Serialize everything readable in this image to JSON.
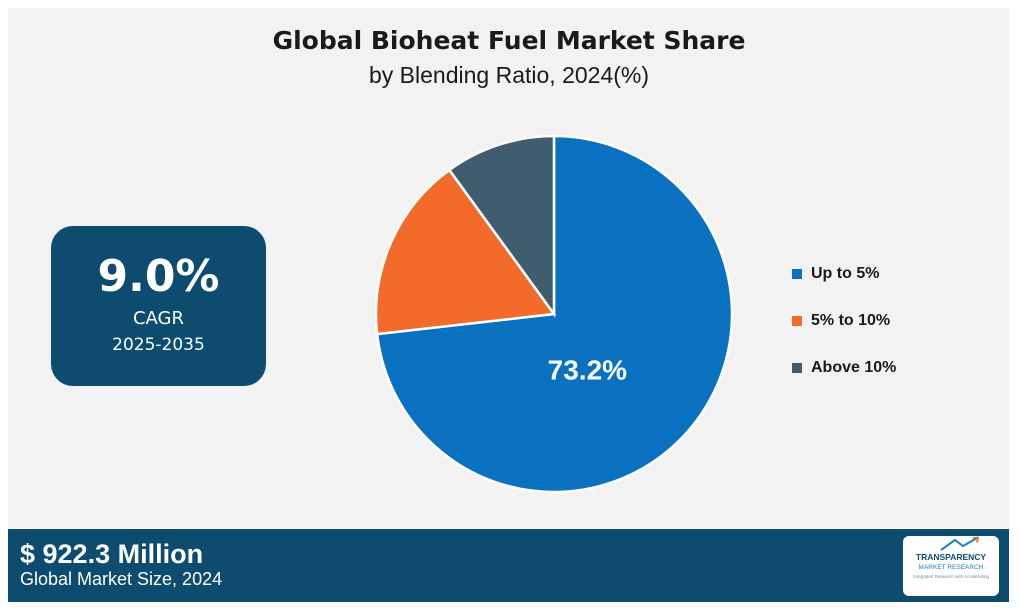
{
  "chart_data": {
    "type": "pie",
    "title": "Global Bioheat Fuel Market Share",
    "subtitle": "by Blending Ratio, 2024(%)",
    "categories": [
      "Up to 5%",
      "5% to 10%",
      "Above 10%"
    ],
    "values": [
      73.2,
      16.8,
      10.0
    ],
    "colors": [
      "#0a70c0",
      "#f26b2a",
      "#3f5d6e"
    ],
    "data_labels": [
      "73.2%",
      "",
      ""
    ],
    "legend_position": "right"
  },
  "cagr": {
    "value": "9.0%",
    "label": "CAGR",
    "period": "2025-2035"
  },
  "footer": {
    "market_size": "$ 922.3 Million",
    "market_size_label": "Global Market Size, 2024"
  },
  "logo": {
    "line1": "TRANSPARENCY",
    "line2": "MARKET RESEARCH",
    "line3": "Integrated Research with Accelerating"
  },
  "colors": {
    "dark_blue": "#0d4c6e",
    "panel_bg": "#f2f2f2"
  }
}
